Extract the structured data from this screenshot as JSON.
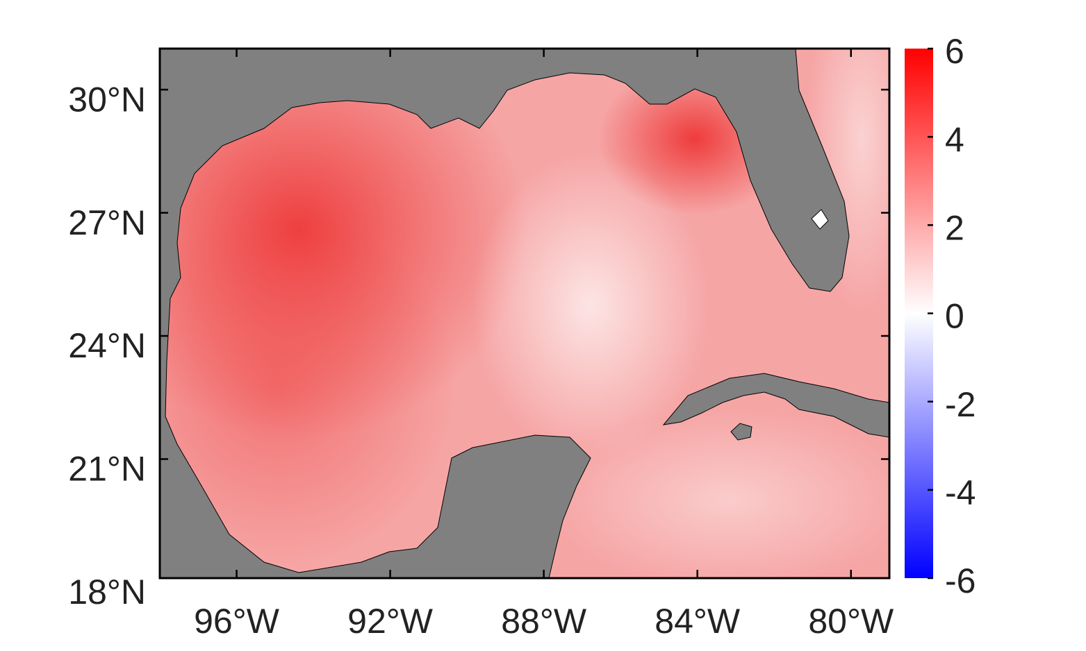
{
  "chart_data": {
    "type": "map",
    "xlim": [
      -98,
      -79
    ],
    "ylim": [
      18.1,
      31
    ],
    "xticks": [
      {
        "value": -96,
        "label": "96°W"
      },
      {
        "value": -92,
        "label": "92°W"
      },
      {
        "value": -88,
        "label": "88°W"
      },
      {
        "value": -84,
        "label": "84°W"
      },
      {
        "value": -80,
        "label": "80°W"
      }
    ],
    "yticks": [
      {
        "value": 18,
        "label": "18°N"
      },
      {
        "value": 21,
        "label": "21°N"
      },
      {
        "value": 24,
        "label": "24°N"
      },
      {
        "value": 27,
        "label": "27°N"
      },
      {
        "value": 30,
        "label": "30°N"
      }
    ],
    "colorbar": {
      "lim": [
        -6,
        6
      ],
      "ticks": [
        -6,
        -4,
        -2,
        0,
        2,
        4,
        6
      ],
      "colors": [
        "#0000ff",
        "#ffffff",
        "#ff0000"
      ]
    }
  }
}
